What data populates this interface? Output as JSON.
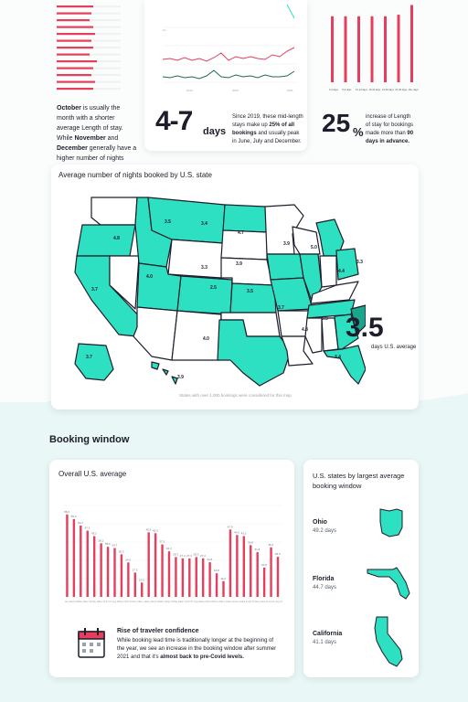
{
  "top": {
    "oct_note": {
      "part1": "October",
      "part2": " is usually the month with a shorter average Length of stay. While ",
      "part3": "November",
      "part4": " and ",
      "part5": "December",
      "part6": " generally have a higher number of nights booked."
    },
    "stat_47": {
      "value": "4-7",
      "unit": "days",
      "text1": "Since 2019, these mid-length stays make up ",
      "text2": "25% of all bookings",
      "text3": " and usually peak in June, July and December."
    },
    "stat_25": {
      "value": "25",
      "unit": "%",
      "text1": "increase of Length of stay for bookings made more than ",
      "text2": "90 days in advance."
    },
    "bar_categories": [
      "0-4 days",
      "5-9 days",
      "10-14 days",
      "15-30 days",
      "31-60 days",
      "61-90 days",
      "90+ days"
    ],
    "bar_values": [
      82,
      82,
      82,
      82,
      82,
      84,
      96
    ]
  },
  "map": {
    "title": "Average number of nights booked by U.S. state",
    "big_value": "3.5",
    "big_label": "days U.S. average",
    "footnote": "States with over 1,000 bookings were considered for this map",
    "labels": [
      "3.5",
      "3.4",
      "4.7",
      "4.8",
      "3.9",
      "5.0",
      "4.4",
      "3.3",
      "3.3",
      "4.0",
      "3.9",
      "3.7",
      "2.5",
      "3.5",
      "3.7",
      "4.0",
      "4.8",
      "5.5",
      "3.4",
      "3.7",
      "3.9"
    ],
    "highlight_color": "#2de0c2",
    "dark_color": "#1aa58c"
  },
  "booking": {
    "section_title": "Booking window",
    "chart_title": "Overall U.S. average",
    "rise_title": "Rise of traveler confidence",
    "rise_text1": "While booking lead time is traditionally longer at the beginning of the year, we see an increase in the booking window after summer 2021 and that it's ",
    "rise_text2": "almost back to pre-Covid levels."
  },
  "side": {
    "title": "U.S. states by largest average booking window",
    "states": [
      {
        "name": "Ohio",
        "days": "49.2 days"
      },
      {
        "name": "Florida",
        "days": "44.7 days"
      },
      {
        "name": "California",
        "days": "41.1 days"
      }
    ]
  },
  "chart_data": [
    {
      "type": "bar",
      "title": "Overall U.S. average",
      "categories": [
        "Jan 19",
        "Feb 19",
        "Mar 19",
        "Apr 19",
        "May 19",
        "Jun 19",
        "Jul 19",
        "Aug 19",
        "Sep 19",
        "Oct 19",
        "Nov 19",
        "Dec 19",
        "Jan 20",
        "Feb 20",
        "Mar 20",
        "Apr 20",
        "May 20",
        "Jun 20",
        "Jul 20",
        "Aug 20",
        "Sep 20",
        "Oct 20",
        "Nov 20",
        "Dec 20",
        "Jan 21",
        "Feb 21",
        "Mar 21",
        "Apr 21",
        "May 21",
        "Jun 21",
        "Jul 21",
        "Aug 21"
      ],
      "values": [
        58.6,
        55.3,
        50.7,
        47.1,
        43.2,
        38.1,
        35.6,
        34.7,
        30.3,
        24.5,
        17.3,
        10.2,
        45.9,
        45.3,
        37.3,
        32.4,
        28.3,
        27.4,
        27.3,
        28.3,
        27.4,
        24.6,
        16.8,
        11.2,
        47.9,
        44.0,
        43.2,
        36.8,
        31.8,
        20.8,
        35.2,
        28.5
      ],
      "ylim": [
        0,
        65
      ],
      "value_labels": [
        "58.6",
        "55.3",
        "50.7",
        "47.1",
        "43.2",
        "38.1",
        "35.6",
        "34.7",
        "30.3",
        "24.5",
        "17.3",
        "10.2",
        "45.9",
        "45.3",
        "37.3",
        "32.4",
        "28.3",
        "27.4",
        "27.3",
        "28.3",
        "27.4",
        "24.6",
        "16.8",
        "11.2",
        "47.9",
        "44.0",
        "43.2",
        "36.8",
        "31.8",
        "20.8",
        "35.2",
        "28.5"
      ],
      "grid": true,
      "color": "#e63e5c"
    }
  ]
}
